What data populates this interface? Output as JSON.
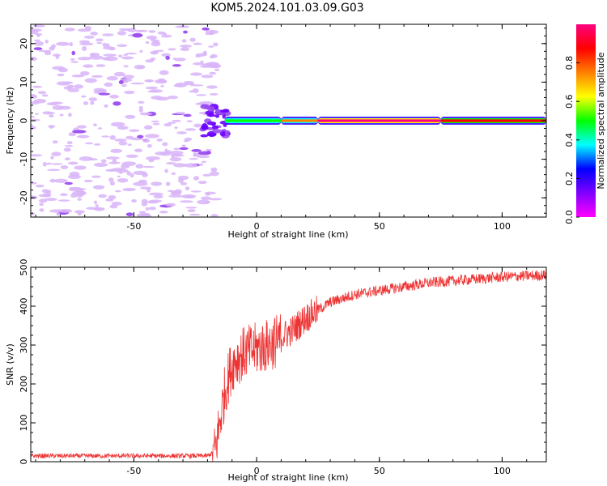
{
  "figure_title": "KOM5.2024.101.03.09.G03",
  "chart_data": [
    {
      "type": "heatmap",
      "name": "spectrogram",
      "xlabel": "Height of straight line (km)",
      "ylabel": "Frequency (Hz)",
      "xlim": [
        -92,
        118
      ],
      "ylim": [
        -25,
        25
      ],
      "x_ticks": [
        -50,
        0,
        50,
        100
      ],
      "y_ticks": [
        -20,
        -10,
        0,
        10,
        20
      ],
      "colorbar": {
        "label": "Normalized spectral amplitude",
        "range": [
          0,
          1
        ],
        "ticks": [
          0.0,
          0.2,
          0.4,
          0.6,
          0.8
        ],
        "colormap": "hsv-reversed",
        "colors": [
          "#ff00ff",
          "#8000ff",
          "#0000ff",
          "#00ffff",
          "#00ff00",
          "#ffff00",
          "#ff8000",
          "#ff0000",
          "#ff0080"
        ]
      },
      "ridge": {
        "frequency_hz": 0,
        "x_start": -13,
        "x_end": 118,
        "segments": [
          {
            "x_from": -13,
            "x_to": 10,
            "amplitude": 0.55
          },
          {
            "x_from": 10,
            "x_to": 25,
            "amplitude": 0.7
          },
          {
            "x_from": 25,
            "x_to": 75,
            "amplitude": 0.95
          },
          {
            "x_from": 75,
            "x_to": 118,
            "amplitude": 0.85
          }
        ]
      },
      "noise_region": {
        "x_from": -92,
        "x_to": -20,
        "amplitude": 0.05
      }
    },
    {
      "type": "line",
      "name": "snr",
      "xlabel": "Height of straight line (km)",
      "ylabel": "SNR (v/v)",
      "xlim": [
        -92,
        118
      ],
      "ylim": [
        0,
        500
      ],
      "x_ticks": [
        -50,
        0,
        50,
        100
      ],
      "y_ticks": [
        0,
        100,
        200,
        300,
        400,
        500
      ],
      "line_color": "#ee3333",
      "envelope": {
        "x": [
          -92,
          -20,
          -17,
          -15,
          -13,
          -11,
          -9,
          -5,
          0,
          5,
          8,
          10,
          15,
          20,
          25,
          30,
          40,
          50,
          60,
          70,
          80,
          90,
          100,
          110,
          118
        ],
        "y": [
          15,
          15,
          25,
          100,
          180,
          230,
          260,
          280,
          290,
          300,
          310,
          320,
          340,
          370,
          390,
          410,
          430,
          440,
          450,
          460,
          465,
          470,
          475,
          478,
          480
        ]
      }
    }
  ]
}
